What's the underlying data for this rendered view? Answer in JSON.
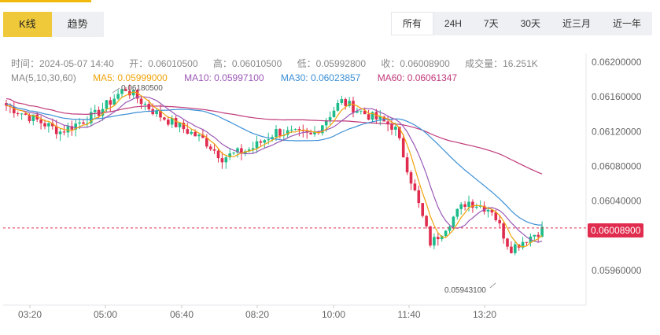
{
  "tabs_left": [
    "K线",
    "趋势"
  ],
  "tabs_right": [
    "所有",
    "24H",
    "7天",
    "30天",
    "近三月",
    "近一年"
  ],
  "info": {
    "time": "时间：2024-05-07 14:40",
    "open": "开：0.06010500",
    "high": "高：0.06010500",
    "low": "低：0.05992800",
    "close": "收：0.06008900",
    "volume": "成交量：16.251K"
  },
  "ma": {
    "label": "MA(5,10,30,60)",
    "ma5": "MA5: 0.05999000",
    "ma10": "MA10: 0.05997100",
    "ma30": "MA30: 0.06023857",
    "ma60": "MA60: 0.06061347"
  },
  "colors": {
    "up": "#1dbb8a",
    "down": "#e02d4f",
    "ma5": "#f0a30a",
    "ma10": "#9b59b6",
    "ma30": "#3b8fd6",
    "ma60": "#c0397a",
    "active_tab": "#f0c93b"
  },
  "current_price": "0.06008900",
  "annotations": {
    "high": "0.06180500",
    "low": "0.05943100"
  },
  "chart_data": {
    "type": "candlestick",
    "y_ticks": [
      "0.06200000",
      "0.06160000",
      "0.06120000",
      "0.06080000",
      "0.06040000",
      "0.05960000"
    ],
    "x_ticks": [
      "03:20",
      "05:00",
      "06:40",
      "08:20",
      "10:00",
      "11:40",
      "13:20"
    ],
    "ylim": [
      0.0592,
      0.0621
    ]
  }
}
